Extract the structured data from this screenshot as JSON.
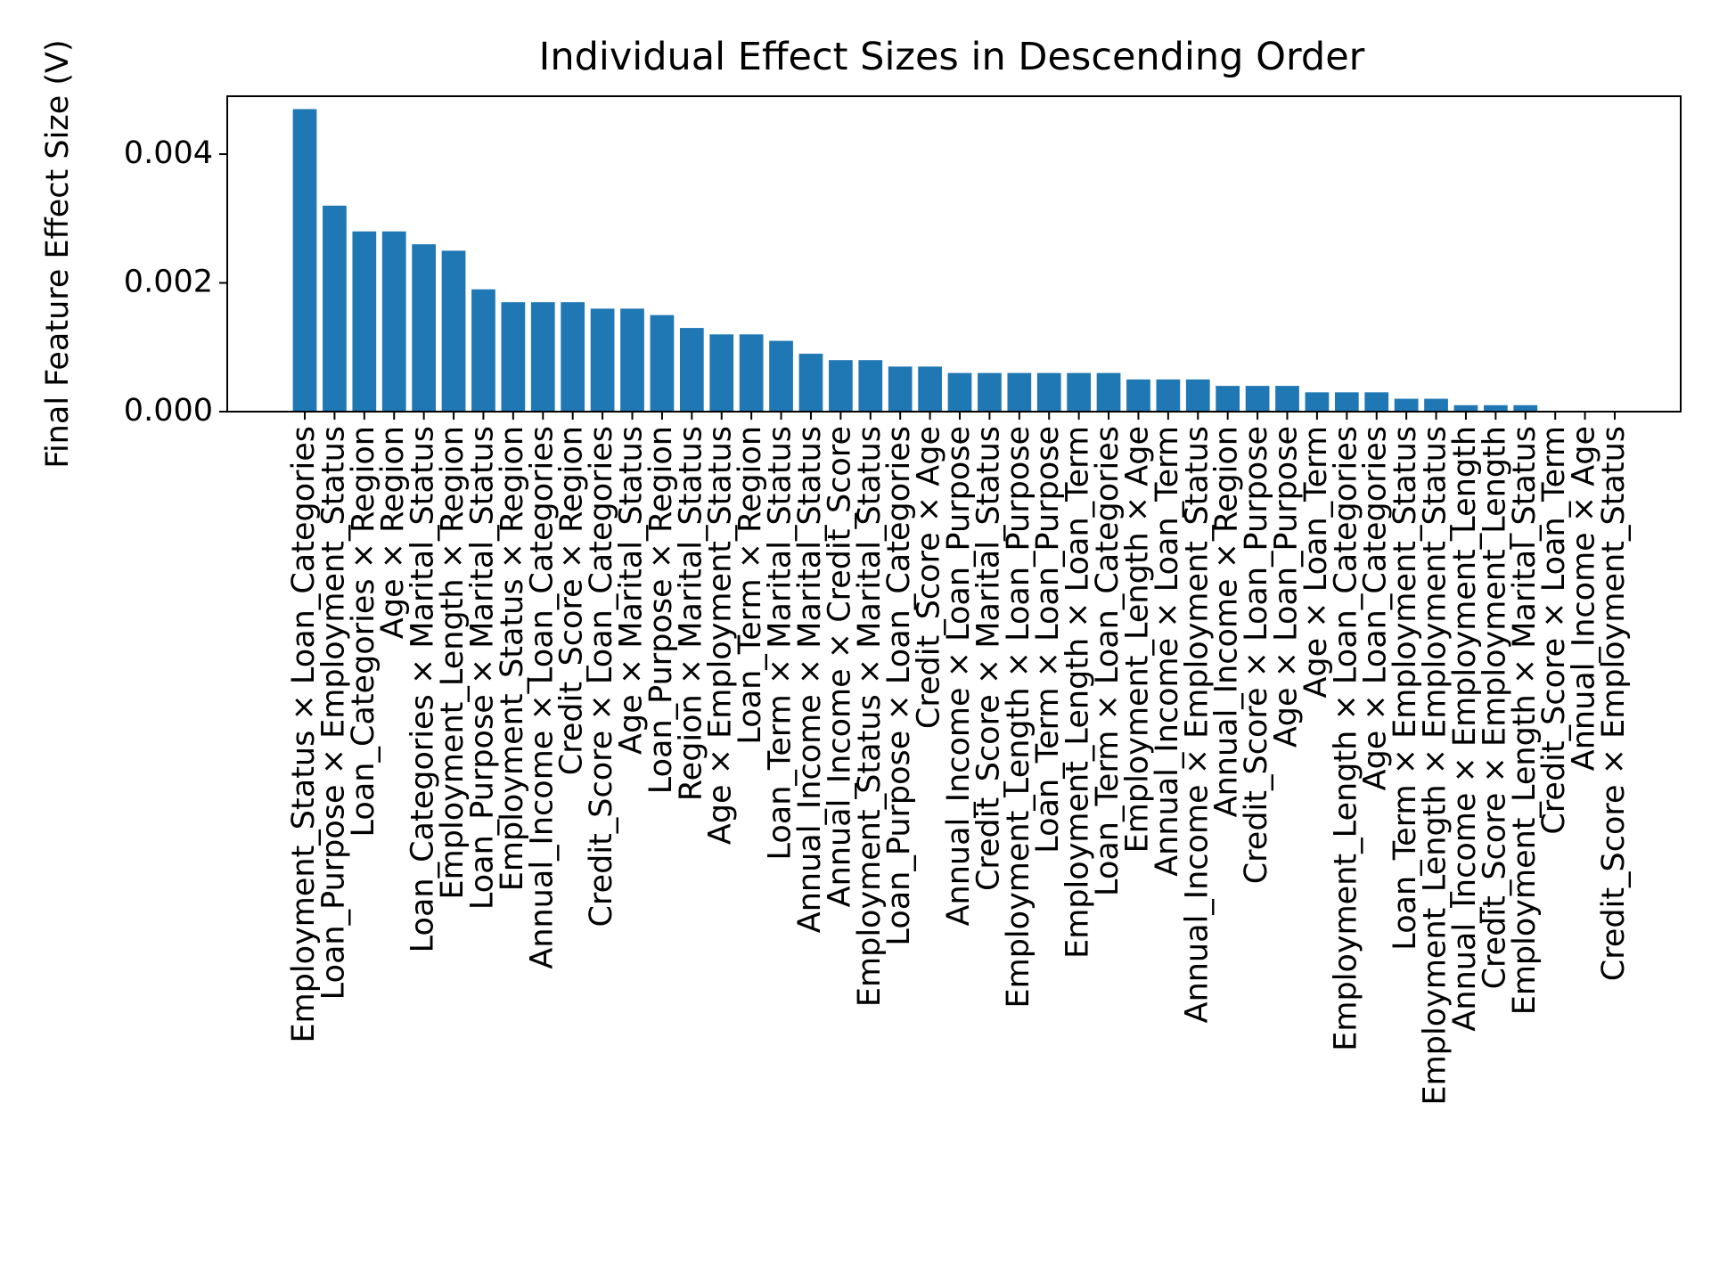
{
  "chart_data": {
    "type": "bar",
    "title": "Individual Effect Sizes in Descending Order",
    "xlabel": "",
    "ylabel": "Final Feature Effect Size (V)",
    "ylim": [
      0,
      0.0049
    ],
    "yticks": [
      "0.000",
      "0.002",
      "0.004"
    ],
    "grid": false,
    "bar_color": "#1f77b4",
    "categories": [
      "Employment_Status × Loan_Categories",
      "Loan_Purpose × Employment_Status",
      "Loan_Categories × Region",
      "Age × Region",
      "Loan_Categories × Marital_Status",
      "Employment_Length × Region",
      "Loan_Purpose × Marital_Status",
      "Employment_Status × Region",
      "Annual_Income × Loan_Categories",
      "Credit_Score × Region",
      "Credit_Score × Loan_Categories",
      "Age × Marital_Status",
      "Loan_Purpose × Region",
      "Region × Marital_Status",
      "Age × Employment_Status",
      "Loan_Term × Region",
      "Loan_Term × Marital_Status",
      "Annual_Income × Marital_Status",
      "Annual_Income × Credit_Score",
      "Employment_Status × Marital_Status",
      "Loan_Purpose × Loan_Categories",
      "Credit_Score × Age",
      "Annual_Income × Loan_Purpose",
      "Credit_Score × Marital_Status",
      "Employment_Length × Loan_Purpose",
      "Loan_Term × Loan_Purpose",
      "Employment_Length × Loan_Term",
      "Loan_Term × Loan_Categories",
      "Employment_Length × Age",
      "Annual_Income × Loan_Term",
      "Annual_Income × Employment_Status",
      "Annual_Income × Region",
      "Credit_Score × Loan_Purpose",
      "Age × Loan_Purpose",
      "Age × Loan_Term",
      "Employment_Length × Loan_Categories",
      "Age × Loan_Categories",
      "Loan_Term × Employment_Status",
      "Employment_Length × Employment_Status",
      "Annual_Income × Employment_Length",
      "Credit_Score × Employment_Length",
      "Employment_Length × Marital_Status",
      "Credit_Score × Loan_Term",
      "Annual_Income × Age",
      "Credit_Score × Employment_Status"
    ],
    "values": [
      0.0047,
      0.0032,
      0.0028,
      0.0028,
      0.0026,
      0.0025,
      0.0019,
      0.0017,
      0.0017,
      0.0017,
      0.0016,
      0.0016,
      0.0015,
      0.0013,
      0.0012,
      0.0012,
      0.0011,
      0.0009,
      0.0008,
      0.0008,
      0.0007,
      0.0007,
      0.0006,
      0.0006,
      0.0006,
      0.0006,
      0.0006,
      0.0006,
      0.0005,
      0.0005,
      0.0005,
      0.0004,
      0.0004,
      0.0004,
      0.0003,
      0.0003,
      0.0003,
      0.0002,
      0.0002,
      0.0001,
      0.0001,
      0.0001,
      0.0,
      0.0,
      0.0
    ]
  }
}
